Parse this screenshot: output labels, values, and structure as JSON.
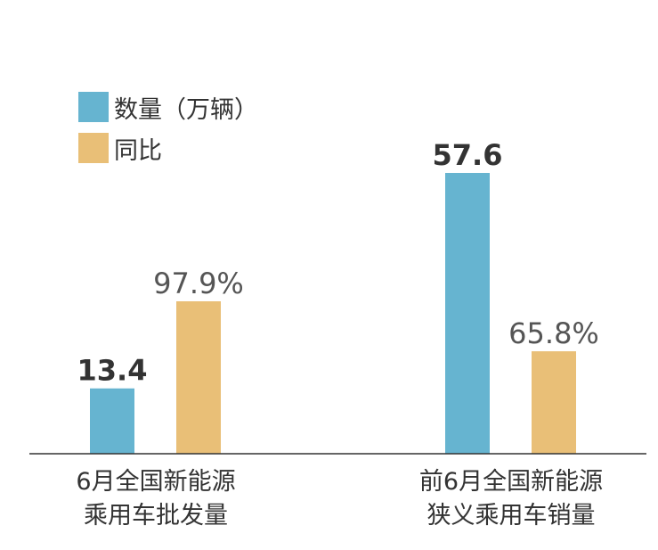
{
  "chart_data": {
    "type": "bar",
    "categories": [
      [
        "6月全国新能源",
        "乘用车批发量"
      ],
      [
        "前6月全国新能源",
        "狭义乘用车销量"
      ]
    ],
    "series": [
      {
        "name": "数量（万辆）",
        "values": [
          13.4,
          57.6
        ],
        "labels": [
          "13.4",
          "57.6"
        ],
        "color": "#66b4d0"
      },
      {
        "name": "同比",
        "values": [
          97.9,
          65.8
        ],
        "labels": [
          "97.9%",
          "65.8%"
        ],
        "color": "#e9bf77"
      }
    ],
    "legend": "top-left",
    "grid": false,
    "xlabel": "",
    "ylabel": "",
    "axis_color": "#333333",
    "value_label_color_count": "#333333",
    "value_label_color_pct": "#555555"
  }
}
